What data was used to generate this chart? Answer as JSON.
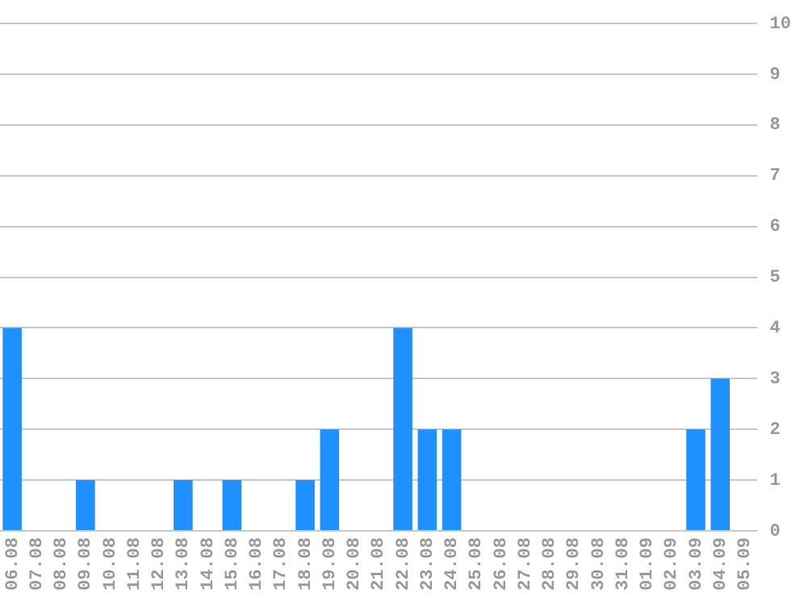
{
  "chart_data": {
    "type": "bar",
    "categories": [
      "06.08",
      "07.08",
      "08.08",
      "09.08",
      "10.08",
      "11.08",
      "12.08",
      "13.08",
      "14.08",
      "15.08",
      "16.08",
      "17.08",
      "18.08",
      "19.08",
      "20.08",
      "21.08",
      "22.08",
      "23.08",
      "24.08",
      "25.08",
      "26.08",
      "27.08",
      "28.08",
      "29.08",
      "30.08",
      "31.08",
      "01.09",
      "02.09",
      "03.09",
      "04.09",
      "05.09"
    ],
    "values": [
      4,
      0,
      0,
      1,
      0,
      0,
      0,
      1,
      0,
      1,
      0,
      0,
      1,
      2,
      0,
      0,
      4,
      2,
      2,
      0,
      0,
      0,
      0,
      0,
      0,
      0,
      0,
      0,
      2,
      3,
      0
    ],
    "color": "#1e90ff",
    "ylim": [
      0,
      10
    ],
    "yticks": [
      0,
      1,
      2,
      3,
      4,
      5,
      6,
      7,
      8,
      9,
      10
    ],
    "grid": "y"
  }
}
